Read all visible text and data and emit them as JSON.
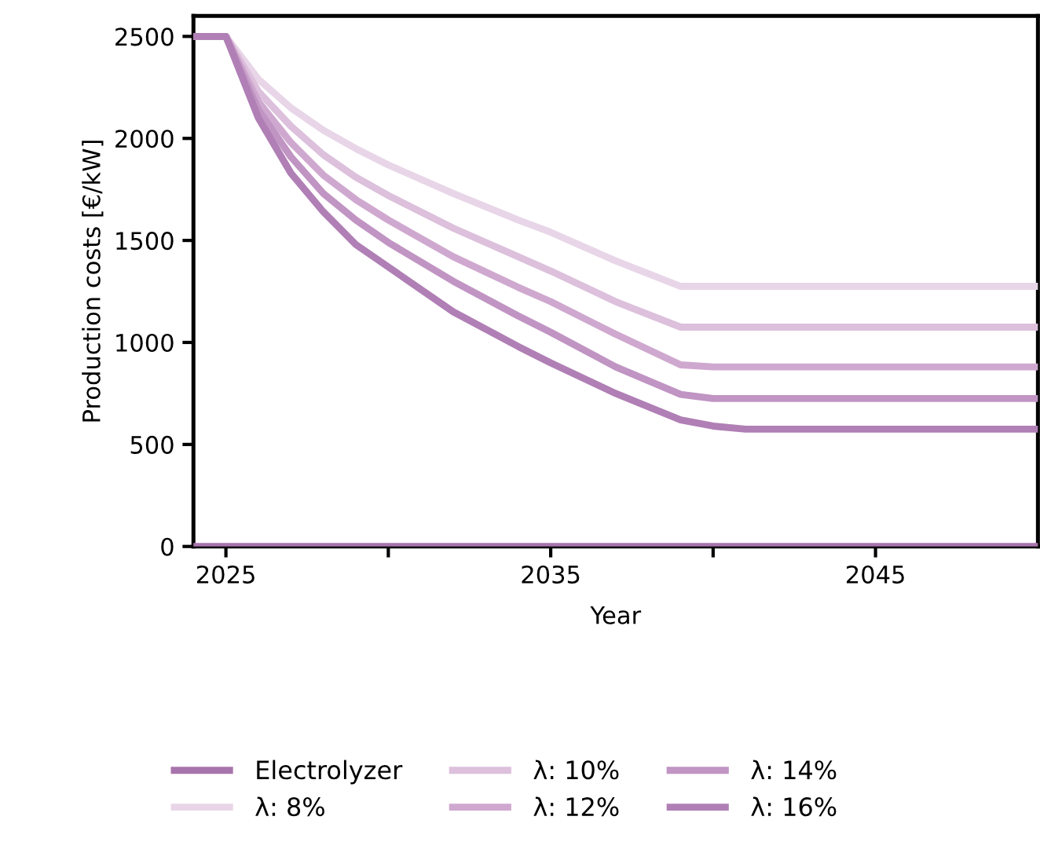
{
  "chart_data": {
    "type": "line",
    "xlabel": "Year",
    "ylabel": "Production costs [€/kW]",
    "xlim": [
      2024,
      2050
    ],
    "ylim": [
      0,
      2600
    ],
    "xticks": [
      2025,
      {
        "value": 2030,
        "label": null
      },
      2035,
      {
        "value": 2040,
        "label": null
      },
      2045
    ],
    "yticks": [
      0,
      500,
      1000,
      1500,
      2000,
      2500
    ],
    "grid": false,
    "legend": "bottom",
    "line_style": "solid",
    "marker": "none",
    "series": [
      {
        "name": "Electrolyzer",
        "color": "#a874ad",
        "x": [
          2024,
          2050
        ],
        "values": [
          0,
          0
        ]
      },
      {
        "name": "λ: 8%",
        "color": "#e8d6e8",
        "x": [
          2024,
          2025,
          2026,
          2027,
          2028,
          2029,
          2030,
          2032,
          2034,
          2035,
          2037,
          2039,
          2050
        ],
        "values": [
          2500,
          2500,
          2290,
          2150,
          2040,
          1950,
          1870,
          1730,
          1600,
          1540,
          1400,
          1275,
          1275
        ]
      },
      {
        "name": "λ: 10%",
        "color": "#dcc0dc",
        "x": [
          2024,
          2025,
          2026,
          2027,
          2028,
          2029,
          2030,
          2032,
          2034,
          2035,
          2037,
          2039,
          2050
        ],
        "values": [
          2500,
          2500,
          2230,
          2060,
          1920,
          1810,
          1720,
          1560,
          1420,
          1350,
          1200,
          1075,
          1075
        ]
      },
      {
        "name": "λ: 12%",
        "color": "#cfa8cf",
        "x": [
          2024,
          2025,
          2026,
          2027,
          2028,
          2029,
          2030,
          2032,
          2034,
          2035,
          2037,
          2039,
          2040,
          2050
        ],
        "values": [
          2500,
          2500,
          2180,
          1980,
          1820,
          1700,
          1600,
          1420,
          1270,
          1200,
          1040,
          890,
          880,
          880
        ]
      },
      {
        "name": "λ: 14%",
        "color": "#c094c3",
        "x": [
          2024,
          2025,
          2026,
          2027,
          2028,
          2029,
          2030,
          2032,
          2034,
          2035,
          2037,
          2039,
          2040,
          2050
        ],
        "values": [
          2500,
          2500,
          2140,
          1910,
          1730,
          1600,
          1490,
          1300,
          1130,
          1050,
          880,
          745,
          725,
          725
        ]
      },
      {
        "name": "λ: 16%",
        "color": "#b07fb5",
        "x": [
          2024,
          2025,
          2026,
          2027,
          2028,
          2029,
          2030,
          2032,
          2034,
          2035,
          2037,
          2039,
          2040,
          2041,
          2050
        ],
        "values": [
          2500,
          2500,
          2100,
          1830,
          1640,
          1480,
          1370,
          1150,
          980,
          900,
          750,
          620,
          590,
          575,
          575
        ]
      }
    ]
  }
}
